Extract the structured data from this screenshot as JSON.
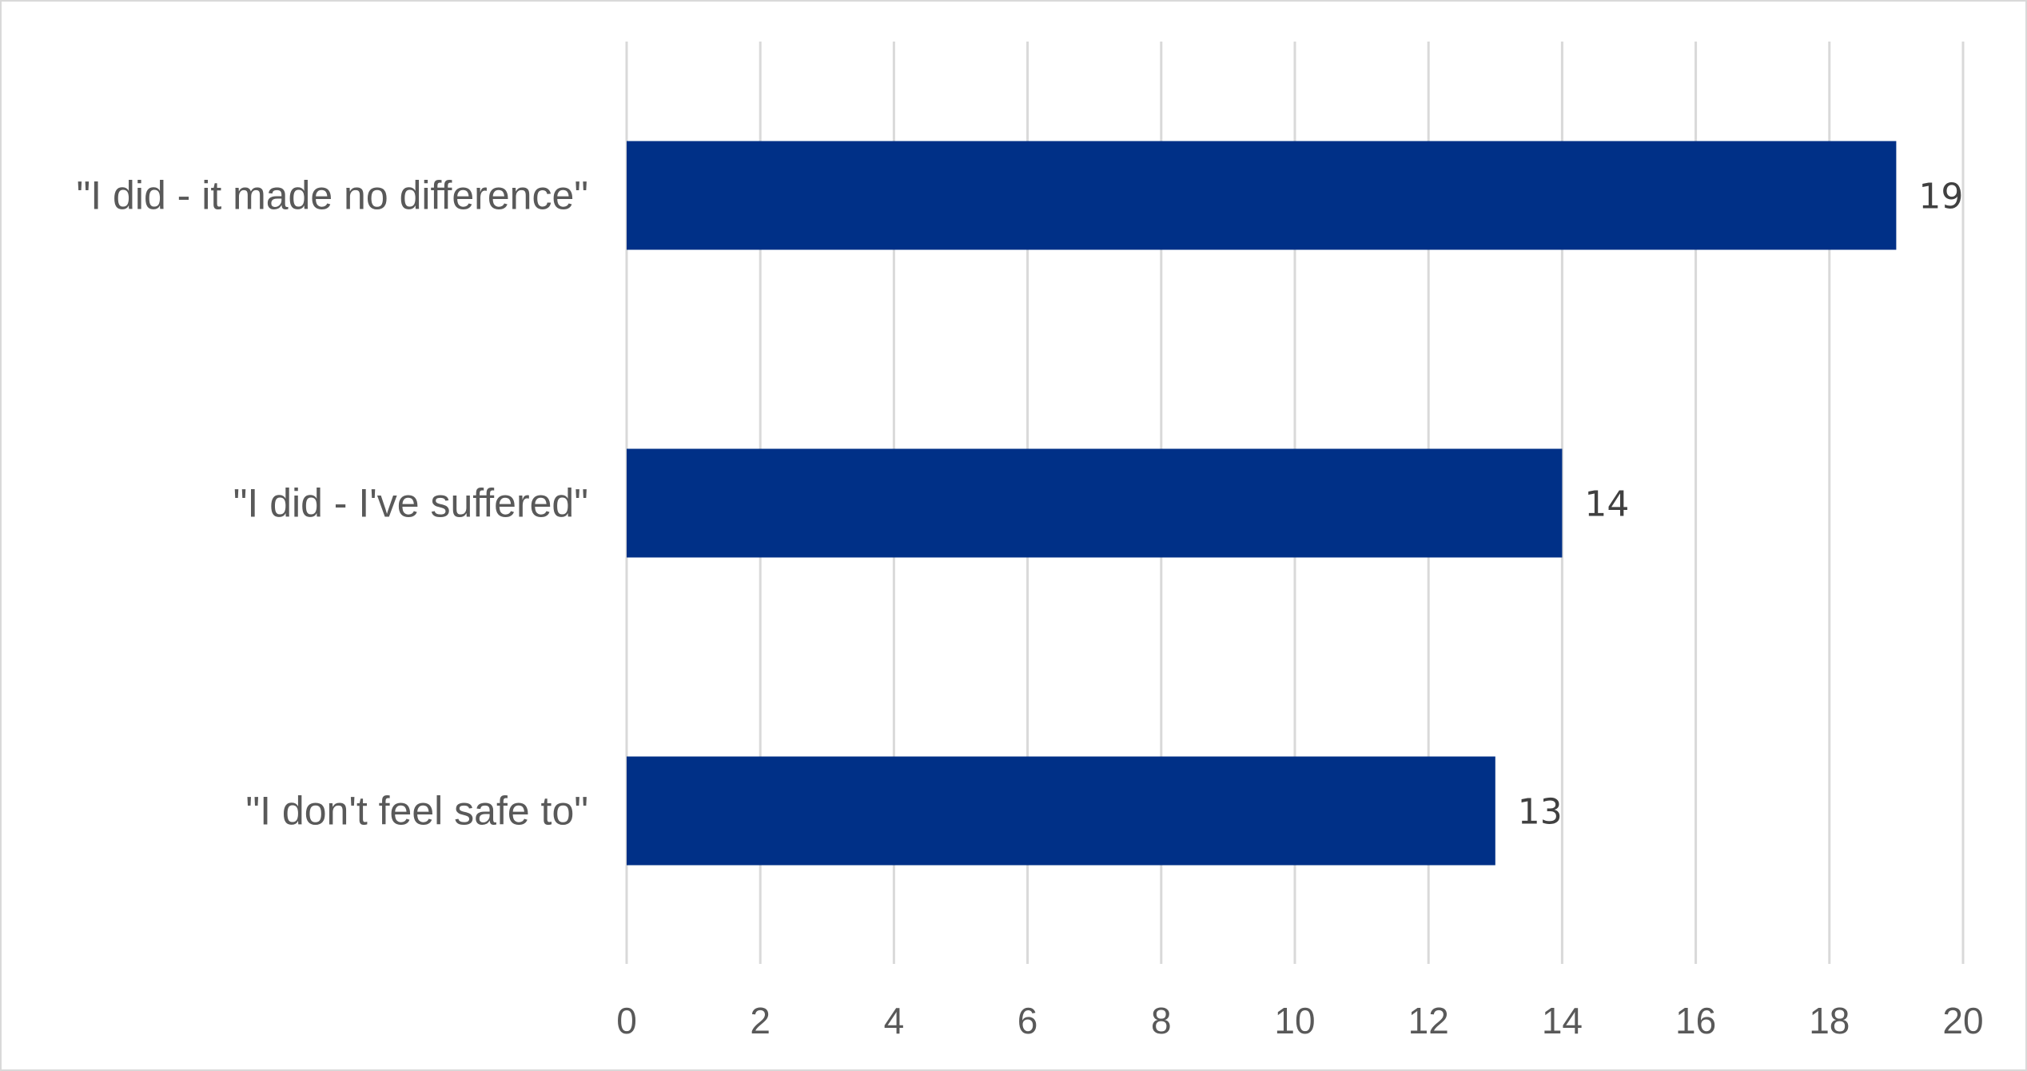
{
  "chart_data": {
    "type": "bar",
    "orientation": "horizontal",
    "categories": [
      "\"I did - it made no difference\"",
      "\"I did - I've suffered\"",
      "\"I don't feel safe to\""
    ],
    "values": [
      19,
      14,
      13
    ],
    "xlim": [
      0,
      20
    ],
    "ticks": [
      "0",
      "2",
      "4",
      "6",
      "8",
      "10",
      "12",
      "14",
      "16",
      "18",
      "20"
    ],
    "title": "",
    "xlabel": "",
    "ylabel": "",
    "grid": true,
    "gridline_direction": "vertical",
    "legend": "none",
    "data_labels": true,
    "bar_color": "#003087"
  }
}
